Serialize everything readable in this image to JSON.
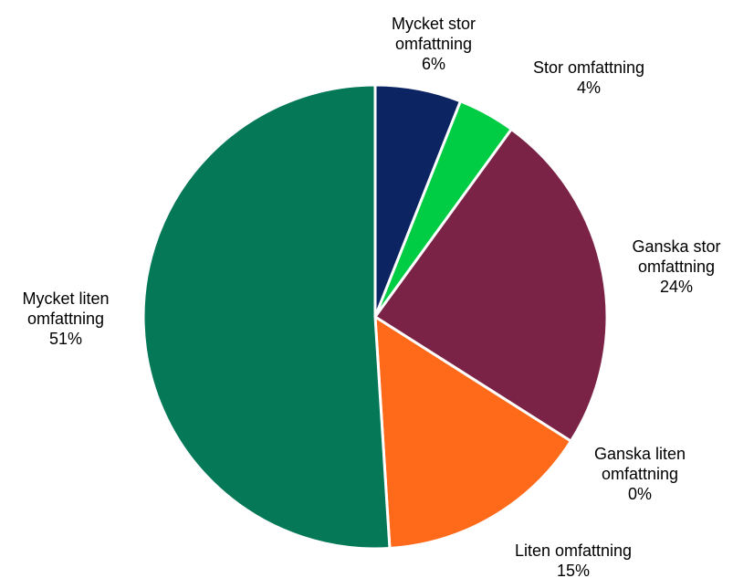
{
  "chart_data": {
    "type": "pie",
    "title": "",
    "start": "12 o'clock",
    "direction": "clockwise",
    "slices": [
      {
        "label_lines": [
          "Mycket stor",
          "omfattning"
        ],
        "percent_label": "6%",
        "value": 6,
        "color": "#0c2461"
      },
      {
        "label_lines": [
          "Stor omfattning"
        ],
        "percent_label": "4%",
        "value": 4,
        "color": "#00cc44"
      },
      {
        "label_lines": [
          "Ganska stor",
          "omfattning"
        ],
        "percent_label": "24%",
        "value": 24,
        "color": "#7b2346"
      },
      {
        "label_lines": [
          "Ganska liten",
          "omfattning"
        ],
        "percent_label": "0%",
        "value": 0,
        "color": "#c9c9c9"
      },
      {
        "label_lines": [
          "Liten omfattning"
        ],
        "percent_label": "15%",
        "value": 15,
        "color": "#ff6a1a"
      },
      {
        "label_lines": [
          "Mycket liten",
          "omfattning"
        ],
        "percent_label": "51%",
        "value": 51,
        "color": "#047857"
      }
    ],
    "legend": "none"
  }
}
